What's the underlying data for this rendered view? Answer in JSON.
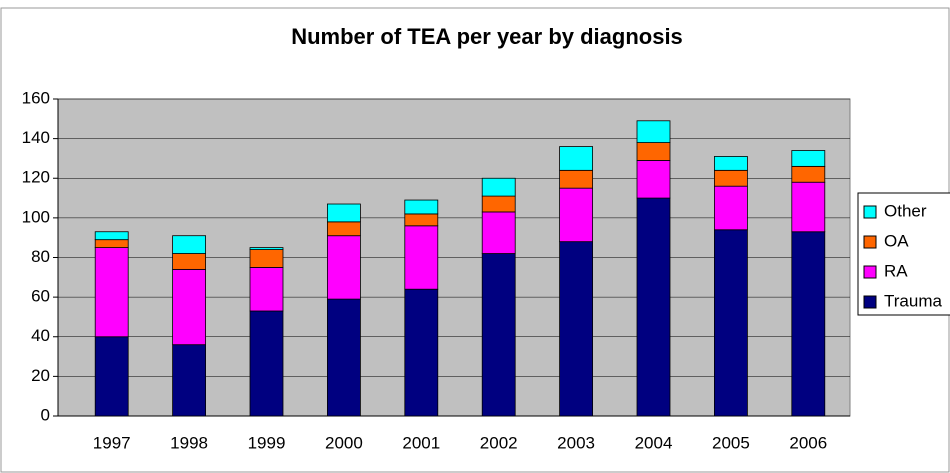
{
  "chart_data": {
    "type": "stacked_bar",
    "title": "Number of TEA per year by diagnosis",
    "categories": [
      "1997",
      "1998",
      "1999",
      "2000",
      "2001",
      "2002",
      "2003",
      "2004",
      "2005",
      "2006"
    ],
    "series": [
      {
        "name": "Trauma",
        "color": "#000080",
        "values": [
          40,
          36,
          53,
          59,
          64,
          82,
          88,
          110,
          94,
          93
        ]
      },
      {
        "name": "RA",
        "color": "#ff00ff",
        "values": [
          45,
          38,
          22,
          32,
          32,
          21,
          27,
          19,
          22,
          25
        ]
      },
      {
        "name": "OA",
        "color": "#ff6600",
        "values": [
          4,
          8,
          9,
          7,
          6,
          8,
          9,
          9,
          8,
          8
        ]
      },
      {
        "name": "Other",
        "color": "#00ffff",
        "values": [
          4,
          9,
          1,
          9,
          7,
          9,
          12,
          11,
          7,
          8
        ]
      }
    ],
    "ylim": [
      0,
      160
    ],
    "yticks": [
      0,
      20,
      40,
      60,
      80,
      100,
      120,
      140,
      160
    ],
    "grid": true,
    "legend": "right"
  }
}
